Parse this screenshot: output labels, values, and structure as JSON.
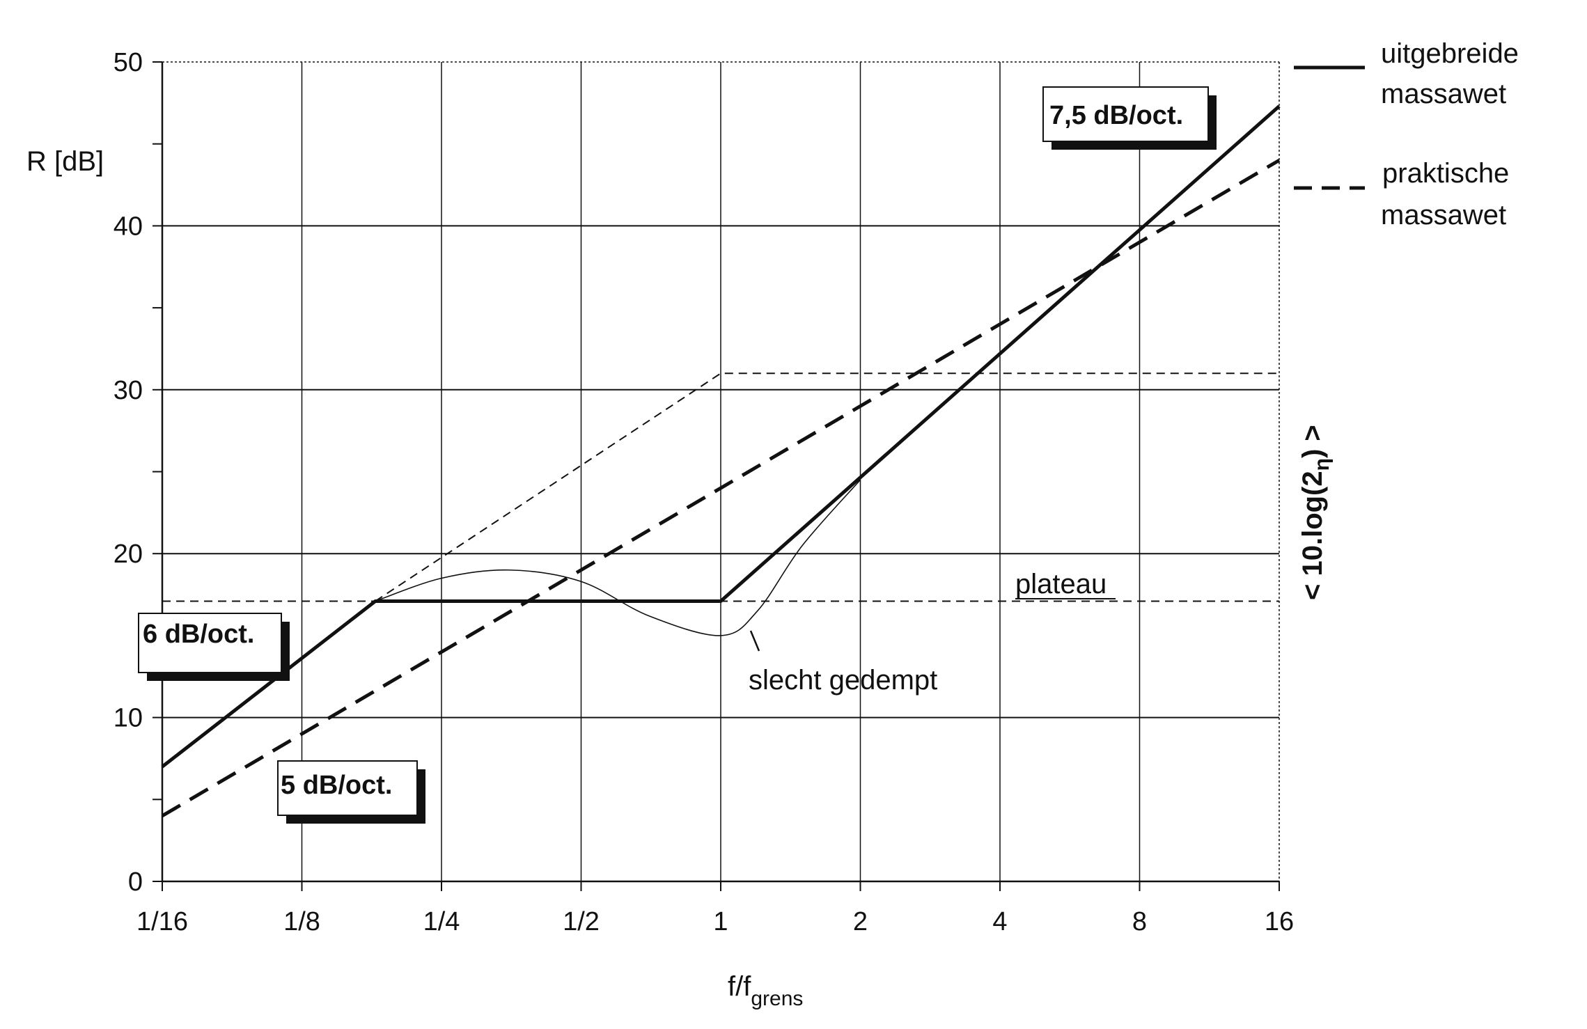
{
  "chart_data": {
    "type": "line",
    "ylabel": "R  [dB]",
    "xlabel_main": "f/f",
    "xlabel_sub": "grens",
    "x_scale": "log2",
    "x_ticks": [
      0.0625,
      0.125,
      0.25,
      0.5,
      1,
      2,
      4,
      8,
      16
    ],
    "x_tick_labels": [
      "1/16",
      "1/8",
      "1/4",
      "1/2",
      "1",
      "2",
      "4",
      "8",
      "16"
    ],
    "xlim": [
      0.0625,
      16
    ],
    "ylim": [
      0,
      50
    ],
    "y_ticks": [
      0,
      10,
      20,
      30,
      40,
      50
    ],
    "y_tick_labels": [
      "0",
      "10",
      "20",
      "30",
      "40",
      "50"
    ],
    "grid": true,
    "legend_position": "right-top",
    "series": [
      {
        "name": "uitgebreide massawet",
        "style": "solid-thick",
        "x": [
          0.0625,
          0.18,
          1,
          16
        ],
        "y": [
          7,
          17.1,
          17.1,
          47.3
        ]
      },
      {
        "name": "praktische massawet",
        "style": "dashed-thick",
        "x": [
          0.0625,
          0.25,
          1,
          4,
          16
        ],
        "y": [
          4,
          14,
          24,
          34,
          44
        ]
      },
      {
        "style": "dashed-thin",
        "x": [
          0.18,
          1,
          16
        ],
        "y": [
          17.1,
          31,
          31
        ]
      },
      {
        "style": "dashed-thin",
        "x": [
          0.0625,
          0.18,
          1,
          16
        ],
        "y": [
          17.1,
          17.1,
          17.1,
          17.1
        ]
      },
      {
        "style": "solid-thin",
        "x": [
          0.18,
          0.25,
          0.35,
          0.5,
          0.7,
          1,
          1.2,
          1.5,
          2
        ],
        "y": [
          17.1,
          18.5,
          19,
          18.3,
          16.2,
          15,
          16.5,
          20.5,
          24.5
        ]
      }
    ],
    "annotations": {
      "plateau": "plateau",
      "slecht_gedempt": "slecht gedempt",
      "right_axis_label": "< 10.log(2",
      "right_axis_eta": "η",
      "right_axis_close": ") >",
      "box_75": "7,5 dB/oct.",
      "box_6": "6 dB/oct.",
      "box_5": "5 dB/oct."
    },
    "legend": [
      {
        "lines": [
          "uitgebreide",
          "massawet"
        ],
        "style": "solid"
      },
      {
        "lines": [
          "praktische",
          "massawet"
        ],
        "style": "dashed"
      }
    ]
  }
}
